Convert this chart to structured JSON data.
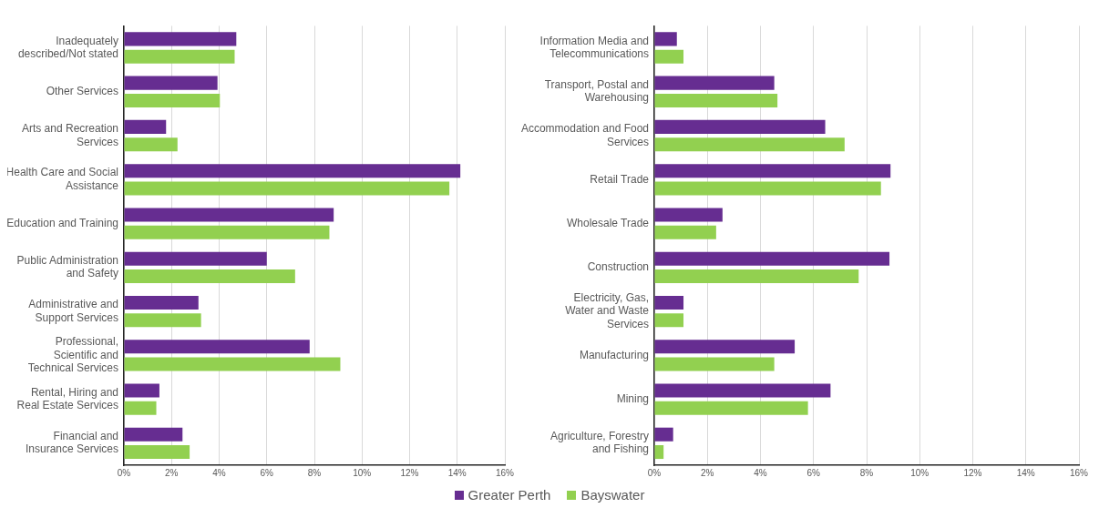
{
  "chart_data": [
    {
      "type": "bar",
      "orientation": "horizontal",
      "categories": [
        "Inadequately described/Not stated",
        "Other Services",
        "Arts and Recreation Services",
        "Health Care and Social Assistance",
        "Education and Training",
        "Public Administration and Safety",
        "Administrative and Support Services",
        "Professional, Scientific and Technical Services",
        "Rental, Hiring and Real Estate Services",
        "Financial and Insurance Services"
      ],
      "series": [
        {
          "name": "Greater Perth",
          "color": "#662d91",
          "values": [
            4.72,
            3.93,
            1.77,
            14.13,
            8.81,
            6.0,
            3.13,
            7.8,
            1.49,
            2.46
          ]
        },
        {
          "name": "Bayswater",
          "color": "#92d050",
          "values": [
            4.65,
            4.03,
            2.25,
            13.67,
            8.63,
            7.19,
            3.24,
            9.09,
            1.36,
            2.76
          ]
        }
      ],
      "xlim": [
        0,
        16
      ],
      "xticks": [
        {
          "value": 0,
          "label": "0%"
        },
        {
          "value": 2,
          "label": "2%"
        },
        {
          "value": 4,
          "label": "4%"
        },
        {
          "value": 6,
          "label": "6%"
        },
        {
          "value": 8,
          "label": "8%"
        },
        {
          "value": 10,
          "label": "10%"
        },
        {
          "value": 12,
          "label": "12%"
        },
        {
          "value": 14,
          "label": "14%"
        },
        {
          "value": 16,
          "label": "16%"
        }
      ],
      "grid": "x",
      "legend": "bottom"
    },
    {
      "type": "bar",
      "orientation": "horizontal",
      "categories": [
        "Information Media and Telecommunications",
        "Transport, Postal and Warehousing",
        "Accommodation and Food Services",
        "Retail Trade",
        "Wholesale Trade",
        "Construction",
        "Electricity, Gas, Water and Waste Services",
        "Manufacturing",
        "Mining",
        "Agriculture, Forestry and Fishing"
      ],
      "series": [
        {
          "name": "Greater Perth",
          "color": "#662d91",
          "values": [
            0.85,
            4.52,
            6.44,
            8.9,
            2.57,
            8.86,
            1.1,
            5.29,
            6.64,
            0.71
          ]
        },
        {
          "name": "Bayswater",
          "color": "#92d050",
          "values": [
            1.1,
            4.64,
            7.17,
            8.54,
            2.33,
            7.7,
            1.1,
            4.52,
            5.79,
            0.35
          ]
        }
      ],
      "xlim": [
        0,
        16
      ],
      "xticks": [
        {
          "value": 0,
          "label": "0%"
        },
        {
          "value": 2,
          "label": "2%"
        },
        {
          "value": 4,
          "label": "4%"
        },
        {
          "value": 6,
          "label": "6%"
        },
        {
          "value": 8,
          "label": "8%"
        },
        {
          "value": 10,
          "label": "10%"
        },
        {
          "value": 12,
          "label": "12%"
        },
        {
          "value": 14,
          "label": "14%"
        },
        {
          "value": 16,
          "label": "16%"
        }
      ],
      "grid": "x",
      "legend": "bottom"
    }
  ]
}
